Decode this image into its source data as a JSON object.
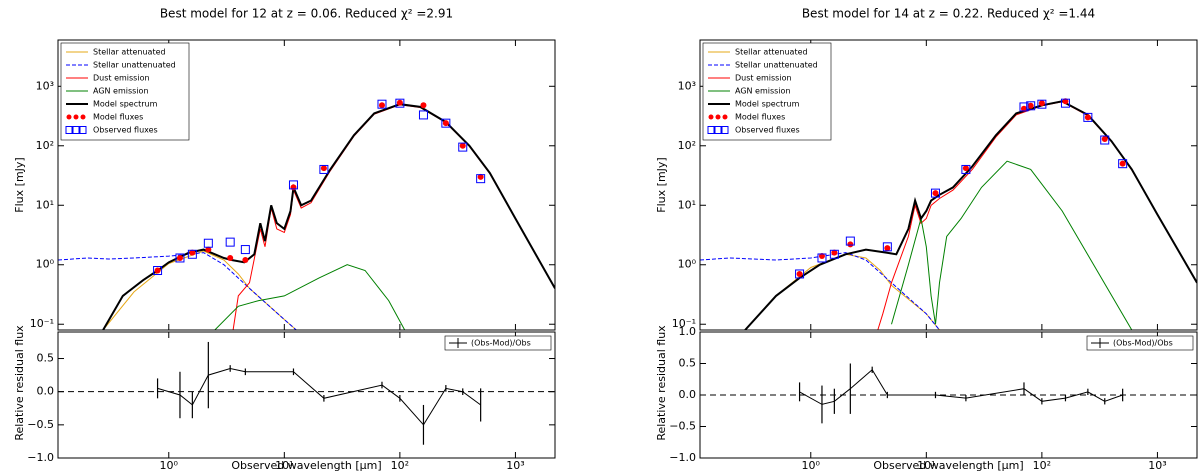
{
  "chart_data": [
    {
      "type": "line",
      "title": "Best model for 12 at z = 0.06. Reduced χ² =2.91",
      "x_label": "Observed wavelength [μm]",
      "y_label": "Flux [mJy]",
      "log_x": true,
      "log_y": true,
      "xlim": [
        0.11,
        2200
      ],
      "ylim": [
        0.08,
        6000
      ],
      "xticks": [
        {
          "value": 1,
          "label": "10⁰"
        },
        {
          "value": 10,
          "label": "10¹"
        },
        {
          "value": 100,
          "label": "10²"
        },
        {
          "value": 1000,
          "label": "10³"
        }
      ],
      "yticks": [
        {
          "value": 0.1,
          "label": "10⁻¹"
        },
        {
          "value": 1,
          "label": "10⁰"
        },
        {
          "value": 10,
          "label": "10¹"
        },
        {
          "value": 100,
          "label": "10²"
        },
        {
          "value": 1000,
          "label": "10³"
        }
      ],
      "legend": "upper left",
      "series": [
        {
          "name": "Stellar attenuated",
          "kind": "line",
          "color": "#e6a817",
          "x": [
            0.27,
            0.5,
            1,
            2,
            3,
            4,
            5,
            10,
            15
          ],
          "values": [
            0.08,
            0.35,
            1.05,
            1.7,
            1.2,
            0.7,
            0.4,
            0.12,
            0.06
          ]
        },
        {
          "name": "Stellar unattenuated",
          "kind": "line",
          "dashed": true,
          "color": "#0000ff",
          "x": [
            0.11,
            0.2,
            0.3,
            0.5,
            1,
            1.5,
            2,
            3,
            5,
            10,
            15
          ],
          "values": [
            1.2,
            1.3,
            1.25,
            1.3,
            1.4,
            1.5,
            1.6,
            1.0,
            0.4,
            0.12,
            0.06
          ]
        },
        {
          "name": "Dust emission",
          "kind": "line",
          "color": "#ff0000",
          "x": [
            3.6,
            4,
            5,
            6.2,
            6.8,
            7.7,
            8.6,
            10,
            11.3,
            12,
            14,
            17,
            25,
            40,
            60,
            100,
            150,
            250,
            400,
            600,
            1000,
            2200
          ],
          "values": [
            0.08,
            0.3,
            0.5,
            4,
            2,
            9,
            4,
            3.5,
            7,
            18,
            9,
            11,
            38,
            145,
            340,
            490,
            440,
            245,
            98,
            34,
            6,
            0.4
          ]
        },
        {
          "name": "AGN emission",
          "kind": "line",
          "color": "#008000",
          "x": [
            2.5,
            4,
            6,
            10,
            20,
            35,
            50,
            80,
            110
          ],
          "values": [
            0.08,
            0.2,
            0.25,
            0.3,
            0.6,
            1.0,
            0.8,
            0.25,
            0.08
          ]
        },
        {
          "name": "Model spectrum",
          "kind": "line",
          "color": "#000000",
          "x": [
            0.27,
            0.4,
            0.6,
            0.8,
            1,
            1.5,
            2,
            3,
            3.5,
            4.5,
            5.5,
            6.2,
            6.8,
            7.7,
            8.6,
            10,
            11.3,
            12,
            14,
            17,
            25,
            40,
            60,
            100,
            150,
            250,
            400,
            600,
            1000,
            2200
          ],
          "values": [
            0.08,
            0.3,
            0.55,
            0.8,
            1.1,
            1.6,
            1.8,
            1.3,
            1.2,
            1.1,
            1.5,
            5,
            2.5,
            10,
            5,
            4,
            8,
            20,
            10,
            12,
            40,
            150,
            350,
            500,
            450,
            250,
            100,
            35,
            6,
            0.4
          ]
        },
        {
          "name": "Model fluxes",
          "kind": "dots",
          "color": "#ff0000",
          "x": [
            0.8,
            1.25,
            1.6,
            2.2,
            3.4,
            4.6,
            12,
            22,
            70,
            100,
            160,
            250,
            350,
            500
          ],
          "values": [
            0.8,
            1.3,
            1.6,
            1.8,
            1.3,
            1.2,
            20,
            42,
            480,
            530,
            480,
            240,
            100,
            30
          ]
        },
        {
          "name": "Observed fluxes",
          "kind": "squares",
          "color": "#0000ff",
          "x": [
            0.8,
            1.25,
            1.6,
            2.2,
            3.4,
            4.6,
            12,
            22,
            70,
            100,
            160,
            250,
            350,
            500
          ],
          "values": [
            0.8,
            1.3,
            1.5,
            2.3,
            2.4,
            1.8,
            22,
            40,
            500,
            520,
            330,
            240,
            95,
            28
          ]
        }
      ],
      "residual": {
        "y_label": "Relative residual flux",
        "name": "(Obs-Mod)/Obs",
        "color": "#000000",
        "ylim": [
          -1,
          0.9
        ],
        "yticks": [
          {
            "value": -1,
            "label": "−1.0"
          },
          {
            "value": -0.5,
            "label": "−0.5"
          },
          {
            "value": 0,
            "label": "0.0"
          },
          {
            "value": 0.5,
            "label": "0.5"
          }
        ],
        "x": [
          0.8,
          1.25,
          1.6,
          2.2,
          3.4,
          4.6,
          12,
          22,
          70,
          100,
          160,
          250,
          350,
          500
        ],
        "values": [
          0.05,
          -0.05,
          -0.2,
          0.25,
          0.35,
          0.3,
          0.3,
          -0.1,
          0.1,
          -0.1,
          -0.5,
          0.05,
          0.0,
          -0.2
        ],
        "errors": [
          0.15,
          0.35,
          0.2,
          0.5,
          0.05,
          0.05,
          0.05,
          0.05,
          0.05,
          0.05,
          0.3,
          0.05,
          0.05,
          0.25
        ]
      }
    },
    {
      "type": "line",
      "title": "Best model for 14 at z = 0.22. Reduced χ² =1.44",
      "x_label": "Observed wavelength [μm]",
      "y_label": "Flux [mJy]",
      "log_x": true,
      "log_y": true,
      "xlim": [
        0.11,
        2200
      ],
      "ylim": [
        0.08,
        6000
      ],
      "xticks": [
        {
          "value": 1,
          "label": "10⁰"
        },
        {
          "value": 10,
          "label": "10¹"
        },
        {
          "value": 100,
          "label": "10²"
        },
        {
          "value": 1000,
          "label": "10³"
        }
      ],
      "yticks": [
        {
          "value": 0.1,
          "label": "10⁻¹"
        },
        {
          "value": 1,
          "label": "10⁰"
        },
        {
          "value": 10,
          "label": "10¹"
        },
        {
          "value": 100,
          "label": "10²"
        },
        {
          "value": 1000,
          "label": "10³"
        }
      ],
      "legend": "upper left",
      "series": [
        {
          "name": "Stellar attenuated",
          "kind": "line",
          "color": "#e6a817",
          "x": [
            0.27,
            0.5,
            1,
            2,
            3,
            4,
            5,
            10,
            13
          ],
          "values": [
            0.08,
            0.3,
            0.9,
            1.5,
            1.3,
            0.8,
            0.45,
            0.15,
            0.08
          ]
        },
        {
          "name": "Stellar unattenuated",
          "kind": "line",
          "dashed": true,
          "color": "#0000ff",
          "x": [
            0.11,
            0.2,
            0.5,
            1,
            2,
            3,
            5,
            10,
            13
          ],
          "values": [
            1.2,
            1.3,
            1.2,
            1.3,
            1.6,
            1.2,
            0.5,
            0.15,
            0.08
          ]
        },
        {
          "name": "Dust emission",
          "kind": "line",
          "color": "#ff0000",
          "x": [
            3.8,
            4.2,
            5,
            7,
            8,
            9,
            10,
            11,
            13,
            17,
            25,
            40,
            60,
            100,
            150,
            250,
            400,
            600,
            1000,
            2200
          ],
          "values": [
            0.08,
            0.15,
            0.5,
            3,
            10,
            5,
            6,
            10,
            13,
            18,
            40,
            140,
            330,
            470,
            550,
            320,
            118,
            39,
            7,
            0.5
          ]
        },
        {
          "name": "AGN emission",
          "kind": "line",
          "color": "#008000",
          "x": [
            5,
            7,
            9,
            10,
            11,
            12,
            13,
            15,
            20,
            30,
            50,
            80,
            150,
            300,
            600
          ],
          "values": [
            0.1,
            1,
            6,
            2,
            0.3,
            0.1,
            0.5,
            3,
            6,
            20,
            55,
            40,
            8,
            0.8,
            0.08
          ]
        },
        {
          "name": "Model spectrum",
          "kind": "line",
          "color": "#000000",
          "x": [
            0.27,
            0.5,
            0.8,
            1.2,
            2,
            3,
            4.5,
            5.5,
            7,
            8,
            9,
            10,
            11,
            13,
            17,
            25,
            40,
            60,
            100,
            150,
            250,
            400,
            600,
            1000,
            2200
          ],
          "values": [
            0.08,
            0.3,
            0.6,
            1.0,
            1.5,
            1.8,
            1.6,
            1.5,
            4,
            12,
            6,
            8,
            12,
            15,
            20,
            45,
            150,
            350,
            480,
            560,
            330,
            120,
            40,
            7,
            0.5
          ]
        },
        {
          "name": "Model fluxes",
          "kind": "dots",
          "color": "#ff0000",
          "x": [
            0.8,
            1.25,
            1.6,
            2.2,
            4.6,
            12,
            22,
            70,
            80,
            100,
            160,
            250,
            350,
            500
          ],
          "values": [
            0.7,
            1.4,
            1.6,
            2.2,
            1.9,
            16,
            42,
            420,
            470,
            520,
            560,
            300,
            130,
            50
          ]
        },
        {
          "name": "Observed fluxes",
          "kind": "squares",
          "color": "#0000ff",
          "x": [
            0.8,
            1.25,
            1.6,
            2.2,
            4.6,
            12,
            22,
            70,
            80,
            100,
            160,
            250,
            350,
            500
          ],
          "values": [
            0.7,
            1.3,
            1.5,
            2.5,
            2.0,
            16,
            40,
            450,
            470,
            500,
            520,
            300,
            125,
            50
          ]
        }
      ],
      "residual": {
        "y_label": "Relative residual flux",
        "name": "(Obs-Mod)/Obs",
        "color": "#000000",
        "ylim": [
          -1,
          1
        ],
        "yticks": [
          {
            "value": -1,
            "label": "−1.0"
          },
          {
            "value": -0.5,
            "label": "−0.5"
          },
          {
            "value": 0,
            "label": "0.0"
          },
          {
            "value": 0.5,
            "label": "0.5"
          },
          {
            "value": 1,
            "label": "1.0"
          }
        ],
        "x": [
          0.8,
          1.25,
          1.6,
          2.2,
          3.4,
          4.6,
          12,
          22,
          70,
          100,
          160,
          250,
          350,
          500
        ],
        "values": [
          0.05,
          -0.15,
          -0.1,
          0.1,
          0.4,
          0.0,
          0.0,
          -0.05,
          0.1,
          -0.1,
          -0.05,
          0.05,
          -0.1,
          0.0
        ],
        "errors": [
          0.15,
          0.3,
          0.2,
          0.4,
          0.05,
          0.05,
          0.05,
          0.05,
          0.1,
          0.05,
          0.05,
          0.05,
          0.05,
          0.1
        ]
      }
    }
  ]
}
